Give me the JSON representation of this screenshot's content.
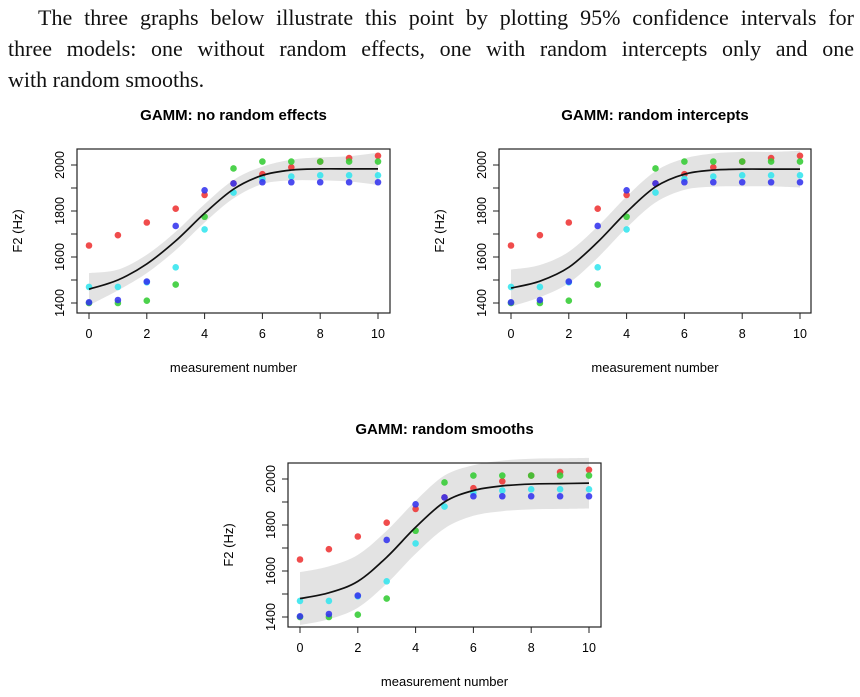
{
  "paragraph": {
    "lines": [
      "The three graphs below illustrate this point by plotting 95% confidence intervals for",
      "three models: one without random effects, one with random intercepts only and one",
      "with random smooths."
    ]
  },
  "colors": {
    "red": "#ee3333",
    "blue": "#3333ee",
    "cyan": "#33e5ee",
    "green": "#33cc33",
    "band": "#e3e3e3",
    "fit": "#111111"
  },
  "chart_data": [
    {
      "type": "scatter",
      "title": "GAMM: no random effects",
      "xlabel": "measurement number",
      "ylabel": "F2 (Hz)",
      "xlim": [
        0,
        10
      ],
      "ylim": [
        1400,
        2040
      ],
      "xticks": [
        0,
        2,
        4,
        6,
        8,
        10
      ],
      "yticks": [
        1400,
        1600,
        1800,
        2000
      ],
      "x": [
        0,
        1,
        2,
        3,
        4,
        5,
        6,
        7,
        8,
        9,
        10
      ],
      "series": [
        {
          "name": "red",
          "values": [
            1650,
            1695,
            1750,
            1810,
            1870,
            1920,
            1960,
            1990,
            2015,
            2030,
            2040
          ]
        },
        {
          "name": "green",
          "values": [
            1400,
            1400,
            1410,
            1480,
            1775,
            1985,
            2015,
            2015,
            2015,
            2015,
            2015
          ]
        },
        {
          "name": "cyan",
          "values": [
            1470,
            1470,
            1490,
            1555,
            1720,
            1880,
            1940,
            1950,
            1955,
            1955,
            1955
          ]
        },
        {
          "name": "blue",
          "values": [
            1403,
            1413,
            1493,
            1735,
            1890,
            1920,
            1925,
            1925,
            1925,
            1925,
            1925
          ]
        }
      ],
      "fit": {
        "values": [
          1460,
          1500,
          1570,
          1670,
          1790,
          1895,
          1955,
          1978,
          1983,
          1983,
          1983
        ]
      },
      "ci_halfwidth": [
        70,
        45,
        40,
        40,
        40,
        40,
        38,
        45,
        50,
        55,
        70
      ]
    },
    {
      "type": "scatter",
      "title": "GAMM: random intercepts",
      "xlabel": "measurement number",
      "ylabel": "F2 (Hz)",
      "xlim": [
        0,
        10
      ],
      "ylim": [
        1400,
        2040
      ],
      "xticks": [
        0,
        2,
        4,
        6,
        8,
        10
      ],
      "yticks": [
        1400,
        1600,
        1800,
        2000
      ],
      "x": [
        0,
        1,
        2,
        3,
        4,
        5,
        6,
        7,
        8,
        9,
        10
      ],
      "series": [
        {
          "name": "red",
          "values": [
            1650,
            1695,
            1750,
            1810,
            1870,
            1920,
            1960,
            1990,
            2015,
            2030,
            2040
          ]
        },
        {
          "name": "green",
          "values": [
            1400,
            1400,
            1410,
            1480,
            1775,
            1985,
            2015,
            2015,
            2015,
            2015,
            2015
          ]
        },
        {
          "name": "cyan",
          "values": [
            1470,
            1470,
            1490,
            1555,
            1720,
            1880,
            1940,
            1950,
            1955,
            1955,
            1955
          ]
        },
        {
          "name": "blue",
          "values": [
            1403,
            1413,
            1493,
            1735,
            1890,
            1920,
            1925,
            1925,
            1925,
            1925,
            1925
          ]
        }
      ],
      "fit": {
        "values": [
          1465,
          1495,
          1555,
          1665,
          1795,
          1905,
          1960,
          1978,
          1982,
          1982,
          1982
        ]
      },
      "ci_halfwidth": [
        80,
        70,
        68,
        68,
        68,
        68,
        68,
        72,
        75,
        75,
        80
      ]
    },
    {
      "type": "scatter",
      "title": "GAMM: random smooths",
      "xlabel": "measurement number",
      "ylabel": "F2 (Hz)",
      "xlim": [
        0,
        10
      ],
      "ylim": [
        1400,
        2040
      ],
      "xticks": [
        0,
        2,
        4,
        6,
        8,
        10
      ],
      "yticks": [
        1400,
        1600,
        1800,
        2000
      ],
      "x": [
        0,
        1,
        2,
        3,
        4,
        5,
        6,
        7,
        8,
        9,
        10
      ],
      "series": [
        {
          "name": "red",
          "values": [
            1650,
            1695,
            1750,
            1810,
            1870,
            1920,
            1960,
            1990,
            2015,
            2030,
            2040
          ]
        },
        {
          "name": "green",
          "values": [
            1400,
            1400,
            1410,
            1480,
            1775,
            1985,
            2015,
            2015,
            2015,
            2015,
            2015
          ]
        },
        {
          "name": "cyan",
          "values": [
            1470,
            1470,
            1490,
            1555,
            1720,
            1880,
            1940,
            1950,
            1955,
            1955,
            1955
          ]
        },
        {
          "name": "blue",
          "values": [
            1403,
            1413,
            1493,
            1735,
            1890,
            1920,
            1925,
            1925,
            1925,
            1925,
            1925
          ]
        }
      ],
      "fit": {
        "values": [
          1480,
          1505,
          1555,
          1660,
          1790,
          1900,
          1950,
          1970,
          1978,
          1980,
          1982
        ]
      },
      "ci_halfwidth": [
        115,
        115,
        115,
        115,
        115,
        115,
        110,
        110,
        110,
        110,
        110
      ]
    }
  ]
}
